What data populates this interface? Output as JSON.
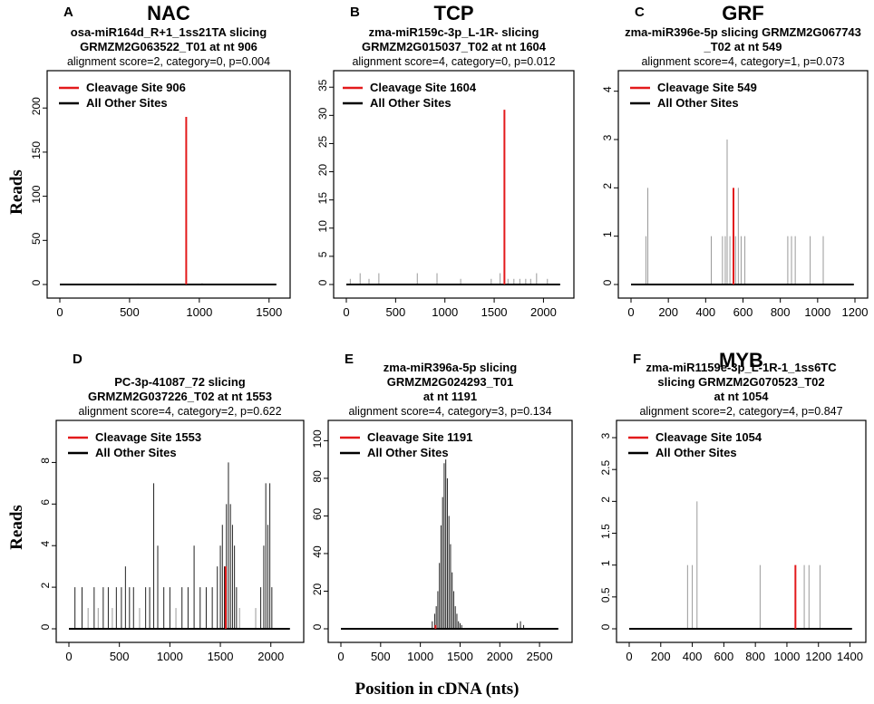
{
  "figure": {
    "ylabel": "Reads",
    "xlabel": "Position in cDNA (nts)"
  },
  "colors": {
    "cleavage": "#e31a1c",
    "other": "#000000",
    "minor": "#9a9a9a"
  },
  "chart_data": [
    {
      "type": "bar",
      "letter": "A",
      "family": "NAC",
      "title_lines": [
        "osa-miR164d_R+1_1ss21TA slicing",
        "GRMZM2G063522_T01 at nt 906"
      ],
      "stats": "alignment score=2, category=0, p=0.004",
      "legend": [
        "Cleavage Site 906",
        "All Other Sites"
      ],
      "xlim": [
        0,
        1560
      ],
      "ylim": [
        0,
        230
      ],
      "xticks": [
        0,
        500,
        1000,
        1500
      ],
      "yticks": [
        0,
        50,
        100,
        150,
        200
      ],
      "cleavage": {
        "x": 906,
        "y": 190
      },
      "other_sites": {
        "x": [
          120,
          260,
          410,
          520,
          560,
          620,
          700,
          780,
          880,
          960,
          1020,
          1080,
          1140,
          1200,
          1250
        ],
        "y": [
          0.6,
          0.5,
          0.7,
          0.6,
          1.2,
          0.8,
          0.6,
          0.5,
          1.0,
          0.9,
          1.5,
          0.8,
          0.6,
          0.7,
          0.4
        ]
      }
    },
    {
      "type": "bar",
      "letter": "B",
      "family": "TCP",
      "title_lines": [
        "zma-miR159c-3p_L-1R- slicing",
        "GRMZM2G015037_T02 at nt 1604"
      ],
      "stats": "alignment score=4, category=0, p=0.012",
      "legend": [
        "Cleavage Site 1604",
        "All Other Sites"
      ],
      "xlim": [
        0,
        2180
      ],
      "ylim": [
        0,
        36
      ],
      "xticks": [
        0,
        500,
        1000,
        1500,
        2000
      ],
      "yticks": [
        0,
        5,
        10,
        15,
        20,
        25,
        30,
        35
      ],
      "cleavage": {
        "x": 1604,
        "y": 31
      },
      "other_sites": {
        "x": [
          40,
          140,
          230,
          330,
          720,
          920,
          1160,
          1470,
          1560,
          1640,
          1700,
          1760,
          1820,
          1870,
          1930,
          2040
        ],
        "y": [
          1,
          2,
          1,
          2,
          2,
          2,
          1,
          1,
          2,
          1,
          1,
          1,
          1,
          1,
          2,
          1
        ]
      }
    },
    {
      "type": "bar",
      "letter": "C",
      "family": "GRF",
      "title_lines": [
        "zma-miR396e-5p slicing GRMZM2G067743",
        "_T02 at nt 549"
      ],
      "stats": "alignment score=4, category=1, p=0.073",
      "legend": [
        "Cleavage Site 549",
        "All Other Sites"
      ],
      "xlim": [
        0,
        1200
      ],
      "ylim": [
        0,
        4.2
      ],
      "xticks": [
        0,
        200,
        400,
        600,
        800,
        1000,
        1200
      ],
      "yticks": [
        0,
        1,
        2,
        3,
        4
      ],
      "cleavage": {
        "x": 549,
        "y": 2
      },
      "other_sites": {
        "x": [
          80,
          90,
          430,
          490,
          505,
          515,
          530,
          560,
          575,
          590,
          610,
          840,
          860,
          880,
          960,
          1030
        ],
        "y": [
          1,
          2,
          1,
          1,
          1,
          3,
          1,
          1,
          2,
          1,
          1,
          1,
          1,
          1,
          1,
          1
        ]
      }
    },
    {
      "type": "bar",
      "letter": "D",
      "family": "",
      "title_lines": [
        "PC-3p-41087_72 slicing",
        "GRMZM2G037226_T02 at nt 1553"
      ],
      "stats": "alignment score=4, category=2, p=0.622",
      "legend": [
        "Cleavage Site 1553",
        "All Other Sites"
      ],
      "xlim": [
        0,
        2200
      ],
      "ylim": [
        0,
        9.5
      ],
      "xticks": [
        0,
        500,
        1000,
        1500,
        2000
      ],
      "yticks": [
        0,
        2,
        4,
        6,
        8
      ],
      "cleavage": {
        "x": 1553,
        "y": 3
      },
      "other_sites": {
        "x": [
          60,
          130,
          190,
          250,
          290,
          340,
          390,
          430,
          470,
          520,
          560,
          600,
          640,
          700,
          760,
          800,
          840,
          880,
          940,
          1000,
          1060,
          1120,
          1180,
          1240,
          1300,
          1360,
          1420,
          1470,
          1500,
          1520,
          1540,
          1560,
          1580,
          1600,
          1620,
          1640,
          1660,
          1690,
          1850,
          1900,
          1930,
          1950,
          1970,
          1990,
          2010
        ],
        "y": [
          2,
          2,
          1,
          2,
          1,
          2,
          2,
          1,
          2,
          2,
          3,
          2,
          2,
          1,
          2,
          2,
          7,
          4,
          2,
          2,
          1,
          2,
          2,
          4,
          2,
          2,
          2,
          3,
          4,
          5,
          3,
          6,
          8,
          6,
          5,
          4,
          2,
          1,
          1,
          2,
          4,
          7,
          5,
          7,
          2
        ]
      }
    },
    {
      "type": "bar",
      "letter": "E",
      "family": "",
      "title_lines": [
        "zma-miR396a-5p slicing",
        "GRMZM2G024293_T01",
        "at nt 1191"
      ],
      "stats": "alignment score=4, category=3, p=0.134",
      "legend": [
        "Cleavage Site 1191",
        "All Other Sites"
      ],
      "xlim": [
        0,
        2750
      ],
      "ylim": [
        0,
        105
      ],
      "xticks": [
        0,
        500,
        1000,
        1500,
        2000,
        2500
      ],
      "yticks": [
        0,
        20,
        40,
        60,
        80,
        100
      ],
      "cleavage": {
        "x": 1191,
        "y": 2
      },
      "other_sites": {
        "x": [
          1150,
          1180,
          1200,
          1220,
          1240,
          1260,
          1280,
          1300,
          1320,
          1340,
          1360,
          1380,
          1400,
          1420,
          1440,
          1460,
          1480,
          1500,
          1520,
          2220,
          2260,
          2300
        ],
        "y": [
          4,
          8,
          12,
          20,
          35,
          55,
          70,
          88,
          90,
          80,
          60,
          45,
          30,
          20,
          12,
          8,
          4,
          3,
          2,
          3,
          4,
          2
        ]
      }
    },
    {
      "type": "bar",
      "letter": "F",
      "family": "MYB",
      "title_lines": [
        "zma-miR1159e-3p_L-1R-1_1ss6TC",
        "slicing GRMZM2G070523_T02",
        "at nt 1054"
      ],
      "stats": "alignment score=2, category=4, p=0.847",
      "legend": [
        "Cleavage Site 1054",
        "All Other Sites"
      ],
      "xlim": [
        0,
        1420
      ],
      "ylim": [
        0,
        3.1
      ],
      "xticks": [
        0,
        200,
        400,
        600,
        800,
        1000,
        1200,
        1400
      ],
      "yticks": [
        0,
        0.5,
        1,
        1.5,
        2,
        2.5,
        3
      ],
      "cleavage": {
        "x": 1054,
        "y": 1
      },
      "other_sites": {
        "x": [
          370,
          400,
          430,
          830,
          1110,
          1140,
          1210
        ],
        "y": [
          1,
          1,
          2,
          1,
          1,
          1,
          1
        ]
      }
    }
  ]
}
